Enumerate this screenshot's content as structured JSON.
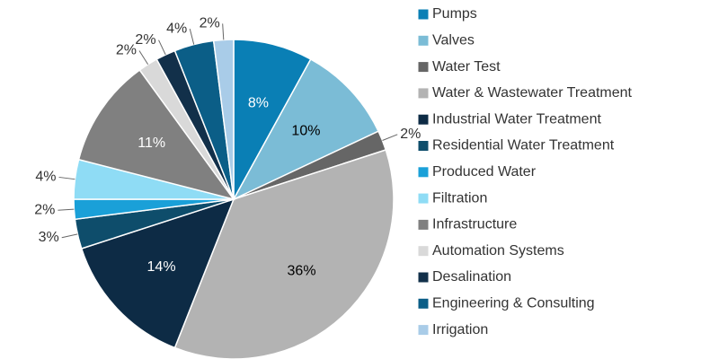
{
  "chart_data": {
    "type": "pie",
    "categories": [
      "Pumps",
      "Valves",
      "Water Test",
      "Water & Wastewater Treatment",
      "Industrial Water Treatment",
      "Residential Water Treatment",
      "Produced Water",
      "Filtration",
      "Infrastructure",
      "Automation Systems",
      "Desalination",
      "Engineering & Consulting",
      "Irrigation"
    ],
    "values": [
      8,
      10,
      2,
      36,
      14,
      3,
      2,
      4,
      11,
      2,
      2,
      4,
      2
    ],
    "value_labels": [
      "8%",
      "10%",
      "2%",
      "36%",
      "14%",
      "3%",
      "2%",
      "4%",
      "11%",
      "2%",
      "2%",
      "4%",
      "2%"
    ],
    "colors": [
      "#0a7fb5",
      "#7bbcd6",
      "#666666",
      "#b3b3b3",
      "#0d2b45",
      "#0e4d6b",
      "#1aa0d8",
      "#8fdcf5",
      "#808080",
      "#d9d9d9",
      "#12304a",
      "#0b5e87",
      "#a9cce8"
    ],
    "legend": "right"
  }
}
